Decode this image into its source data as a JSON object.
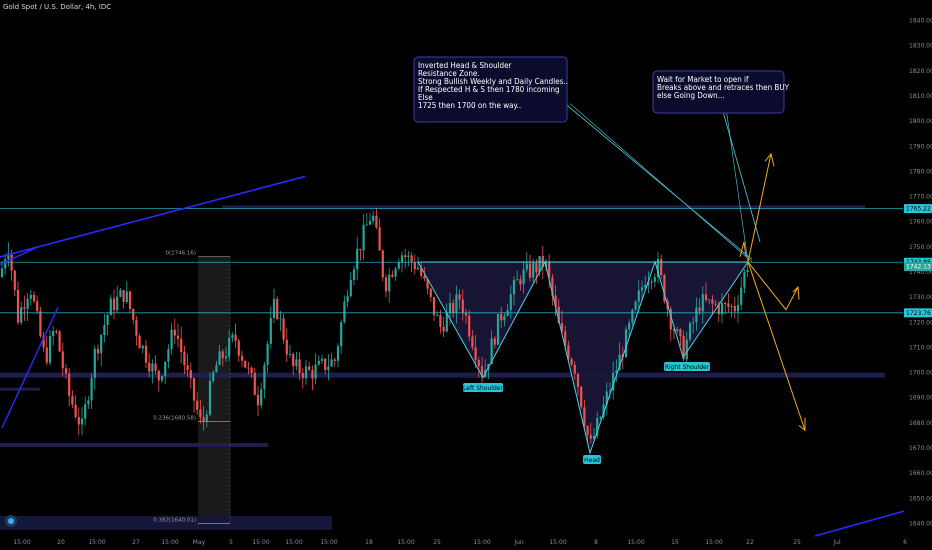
{
  "header": {
    "title": "Gold Spot / U.S. Dollar, 4h, IDC"
  },
  "chart_data": {
    "type": "candlestick",
    "symbol": "Gold Spot / U.S. Dollar",
    "timeframe": "4h",
    "source": "IDC",
    "ylim": [
      1635,
      1845
    ],
    "yticks": [
      1640,
      1650,
      1660,
      1670,
      1680,
      1690,
      1700,
      1710,
      1720,
      1730,
      1740,
      1750,
      1760,
      1770,
      1780,
      1790,
      1800,
      1810,
      1820,
      1830,
      1840
    ],
    "xticks": [
      "15:00",
      "20",
      "15:00",
      "27",
      "15:00",
      "May",
      "5",
      "15:00",
      "15:00",
      "15:00",
      "18",
      "15:00",
      "25",
      "15:00",
      "Jun",
      "15:00",
      "8",
      "15:00",
      "15",
      "15:00",
      "22",
      "25",
      "Jul",
      "6"
    ],
    "price_tags": [
      {
        "value": 1765.22,
        "label": "1765.22",
        "color": "#26c6da",
        "text_color": "#000000"
      },
      {
        "value": 1743.88,
        "label": "1743.88",
        "color": "#26c6da",
        "text_color": "#000000"
      },
      {
        "value": 1742.13,
        "label": "1742.13",
        "color": "#26a69a",
        "text_color": "#ffffff"
      },
      {
        "value": 1723.76,
        "label": "1723.76",
        "color": "#26c6da",
        "text_color": "#000000"
      }
    ],
    "fib_levels": [
      {
        "label": "0(1746.16)",
        "value": 1746.16
      },
      {
        "label": "0.236(1680.58)",
        "value": 1680.58
      },
      {
        "label": "0.382(1640.01)",
        "value": 1640.01
      }
    ],
    "pattern_labels": [
      "Left Shoulder",
      "Head",
      "Right Shoulder"
    ],
    "annotations": [
      [
        "Inverted Head & Shoulder",
        "Resistance Zone.",
        "Strong Bullish Weekly and Daily Candles..",
        "If Respected H & S then 1780 incoming",
        "Else",
        "1725 then 1700 on the way.."
      ],
      [
        "Wait for Market to open if",
        "Breaks above and retraces then BUY",
        "else Going Down..."
      ]
    ],
    "colors": {
      "up": "#26a69a",
      "down": "#ef5350",
      "pattern": "#4dd0e1",
      "trendline": "#2a2aff",
      "arrows": "#f5a623",
      "zone": "#1d1f4a"
    }
  }
}
